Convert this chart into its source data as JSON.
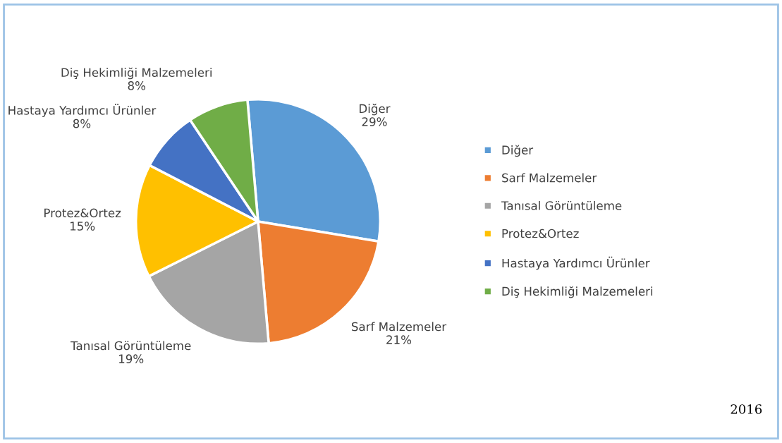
{
  "chart_data": {
    "type": "pie",
    "categories": [
      "Diğer",
      "Sarf Malzemeler",
      "Tanısal Görüntüleme",
      "Protez&Ortez",
      "Hastaya Yardımcı Ürünler",
      "Diş Hekimliği Malzemeleri"
    ],
    "values": [
      29,
      21,
      19,
      15,
      8,
      8
    ],
    "colors": [
      "#5b9bd5",
      "#ed7d31",
      "#a5a5a5",
      "#ffc000",
      "#4472c4",
      "#70ad47"
    ],
    "value_labels": [
      "29%",
      "21%",
      "19%",
      "15%",
      "8%",
      "8%"
    ],
    "legend": "right",
    "annotations": [
      "2016"
    ]
  }
}
